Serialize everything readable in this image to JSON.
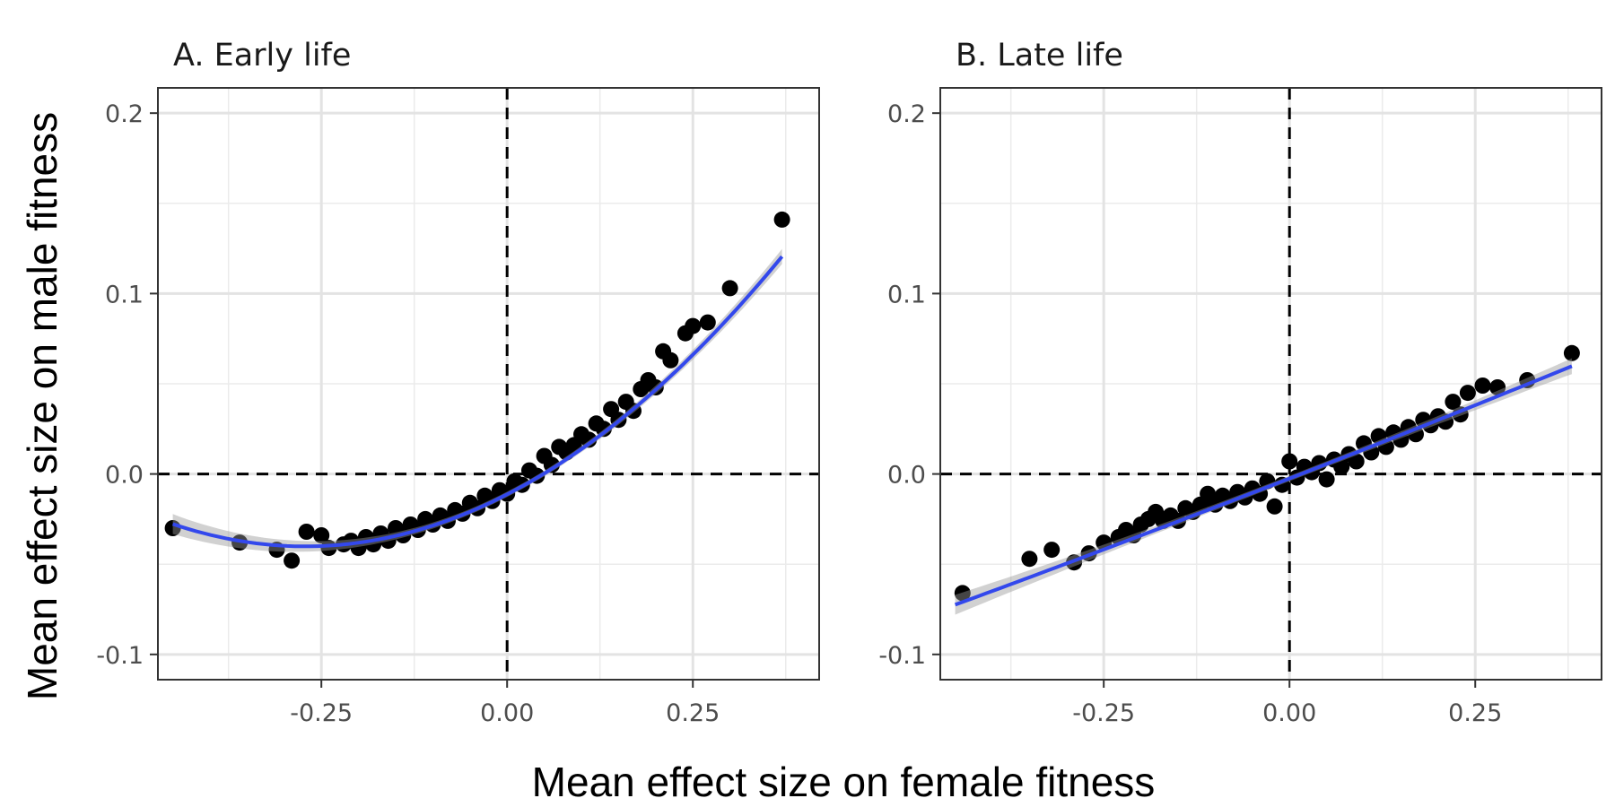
{
  "figure": {
    "ylabel": "Mean effect size on male fitness",
    "xlabel": "Mean effect size on female fitness"
  },
  "chart_data": [
    {
      "type": "scatter",
      "title": "A. Early life",
      "xlabel": "Mean effect size on female fitness",
      "ylabel": "Mean effect size on male fitness",
      "xlim": [
        -0.47,
        0.42
      ],
      "ylim": [
        -0.114,
        0.214
      ],
      "xticks": [
        -0.25,
        0.0,
        0.25
      ],
      "xtick_labels": [
        "-0.25",
        "0.00",
        "0.25"
      ],
      "yticks": [
        -0.1,
        0.0,
        0.1,
        0.2
      ],
      "ytick_labels": [
        "-0.1",
        "0.0",
        "0.1",
        "0.2"
      ],
      "grid": true,
      "reference_lines": {
        "x": 0,
        "y": 0,
        "style": "dashed"
      },
      "fit": {
        "type": "quadratic",
        "color": "#3348ec",
        "x_range": [
          -0.45,
          0.37
        ],
        "coef": [
          -0.0113,
          0.212,
          0.39
        ]
      },
      "points": [
        [
          -0.45,
          -0.03
        ],
        [
          -0.36,
          -0.038
        ],
        [
          -0.31,
          -0.042
        ],
        [
          -0.29,
          -0.048
        ],
        [
          -0.27,
          -0.032
        ],
        [
          -0.25,
          -0.034
        ],
        [
          -0.24,
          -0.041
        ],
        [
          -0.22,
          -0.039
        ],
        [
          -0.21,
          -0.037
        ],
        [
          -0.2,
          -0.041
        ],
        [
          -0.19,
          -0.035
        ],
        [
          -0.18,
          -0.039
        ],
        [
          -0.17,
          -0.033
        ],
        [
          -0.16,
          -0.037
        ],
        [
          -0.15,
          -0.03
        ],
        [
          -0.14,
          -0.034
        ],
        [
          -0.13,
          -0.028
        ],
        [
          -0.12,
          -0.031
        ],
        [
          -0.11,
          -0.025
        ],
        [
          -0.1,
          -0.028
        ],
        [
          -0.09,
          -0.023
        ],
        [
          -0.08,
          -0.026
        ],
        [
          -0.07,
          -0.02
        ],
        [
          -0.06,
          -0.022
        ],
        [
          -0.05,
          -0.016
        ],
        [
          -0.04,
          -0.019
        ],
        [
          -0.03,
          -0.012
        ],
        [
          -0.02,
          -0.015
        ],
        [
          -0.01,
          -0.009
        ],
        [
          0.0,
          -0.011
        ],
        [
          0.01,
          -0.004
        ],
        [
          0.02,
          -0.006
        ],
        [
          0.03,
          0.002
        ],
        [
          0.04,
          -0.001
        ],
        [
          0.05,
          0.01
        ],
        [
          0.06,
          0.005
        ],
        [
          0.07,
          0.015
        ],
        [
          0.08,
          0.012
        ],
        [
          0.09,
          0.016
        ],
        [
          0.1,
          0.022
        ],
        [
          0.11,
          0.019
        ],
        [
          0.12,
          0.028
        ],
        [
          0.13,
          0.025
        ],
        [
          0.14,
          0.036
        ],
        [
          0.15,
          0.03
        ],
        [
          0.16,
          0.04
        ],
        [
          0.17,
          0.035
        ],
        [
          0.18,
          0.047
        ],
        [
          0.19,
          0.052
        ],
        [
          0.2,
          0.048
        ],
        [
          0.21,
          0.068
        ],
        [
          0.22,
          0.063
        ],
        [
          0.24,
          0.078
        ],
        [
          0.25,
          0.082
        ],
        [
          0.27,
          0.084
        ],
        [
          0.3,
          0.103
        ],
        [
          0.37,
          0.141
        ]
      ]
    },
    {
      "type": "scatter",
      "title": "B. Late life",
      "xlabel": "Mean effect size on female fitness",
      "ylabel": "Mean effect size on male fitness",
      "xlim": [
        -0.47,
        0.42
      ],
      "ylim": [
        -0.114,
        0.214
      ],
      "xticks": [
        -0.25,
        0.0,
        0.25
      ],
      "xtick_labels": [
        "-0.25",
        "0.00",
        "0.25"
      ],
      "yticks": [
        -0.1,
        0.0,
        0.1,
        0.2
      ],
      "ytick_labels": [
        "-0.1",
        "0.0",
        "0.1",
        "0.2"
      ],
      "grid": true,
      "reference_lines": {
        "x": 0,
        "y": 0,
        "style": "dashed"
      },
      "fit": {
        "type": "quadratic",
        "color": "#3348ec",
        "x_range": [
          -0.45,
          0.38
        ],
        "coef": [
          -0.0025,
          0.16,
          0.01
        ]
      },
      "points": [
        [
          -0.44,
          -0.066
        ],
        [
          -0.35,
          -0.047
        ],
        [
          -0.32,
          -0.042
        ],
        [
          -0.29,
          -0.049
        ],
        [
          -0.27,
          -0.044
        ],
        [
          -0.25,
          -0.038
        ],
        [
          -0.23,
          -0.035
        ],
        [
          -0.22,
          -0.031
        ],
        [
          -0.21,
          -0.034
        ],
        [
          -0.2,
          -0.028
        ],
        [
          -0.19,
          -0.025
        ],
        [
          -0.18,
          -0.021
        ],
        [
          -0.17,
          -0.026
        ],
        [
          -0.16,
          -0.023
        ],
        [
          -0.15,
          -0.026
        ],
        [
          -0.14,
          -0.019
        ],
        [
          -0.13,
          -0.021
        ],
        [
          -0.12,
          -0.017
        ],
        [
          -0.11,
          -0.011
        ],
        [
          -0.1,
          -0.017
        ],
        [
          -0.09,
          -0.012
        ],
        [
          -0.08,
          -0.015
        ],
        [
          -0.07,
          -0.01
        ],
        [
          -0.06,
          -0.013
        ],
        [
          -0.05,
          -0.008
        ],
        [
          -0.04,
          -0.011
        ],
        [
          -0.03,
          -0.004
        ],
        [
          -0.02,
          -0.018
        ],
        [
          -0.01,
          -0.006
        ],
        [
          0.0,
          0.007
        ],
        [
          0.01,
          -0.002
        ],
        [
          0.02,
          0.004
        ],
        [
          0.03,
          0.001
        ],
        [
          0.04,
          0.006
        ],
        [
          0.05,
          -0.003
        ],
        [
          0.06,
          0.008
        ],
        [
          0.07,
          0.004
        ],
        [
          0.08,
          0.011
        ],
        [
          0.09,
          0.007
        ],
        [
          0.1,
          0.017
        ],
        [
          0.11,
          0.012
        ],
        [
          0.12,
          0.021
        ],
        [
          0.13,
          0.015
        ],
        [
          0.14,
          0.023
        ],
        [
          0.15,
          0.019
        ],
        [
          0.16,
          0.026
        ],
        [
          0.17,
          0.022
        ],
        [
          0.18,
          0.03
        ],
        [
          0.19,
          0.027
        ],
        [
          0.2,
          0.032
        ],
        [
          0.21,
          0.029
        ],
        [
          0.22,
          0.04
        ],
        [
          0.23,
          0.033
        ],
        [
          0.24,
          0.045
        ],
        [
          0.26,
          0.049
        ],
        [
          0.28,
          0.048
        ],
        [
          0.32,
          0.052
        ],
        [
          0.38,
          0.067
        ]
      ]
    }
  ]
}
